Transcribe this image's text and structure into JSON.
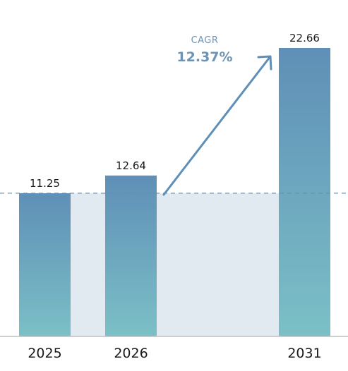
{
  "chart_data": {
    "type": "bar",
    "categories": [
      "2025",
      "2026",
      "2031"
    ],
    "values": [
      11.25,
      12.64,
      22.66
    ],
    "data_labels": [
      "11.25",
      "12.64",
      "22.66"
    ],
    "ylim": [
      0,
      22.66
    ],
    "grid": false,
    "reference_line": 11.25,
    "annotation": {
      "title": "CAGR",
      "value": "12.37%"
    },
    "colors": {
      "bar_top": "#5f8fb7",
      "bar_bottom": "#7bc0c6",
      "band": "#e1e9f1",
      "arrow": "#5f8fb7",
      "annotation_text": "#6f93b4",
      "reference_line": "#5f8fb7",
      "axis": "#bfbfbf"
    }
  }
}
